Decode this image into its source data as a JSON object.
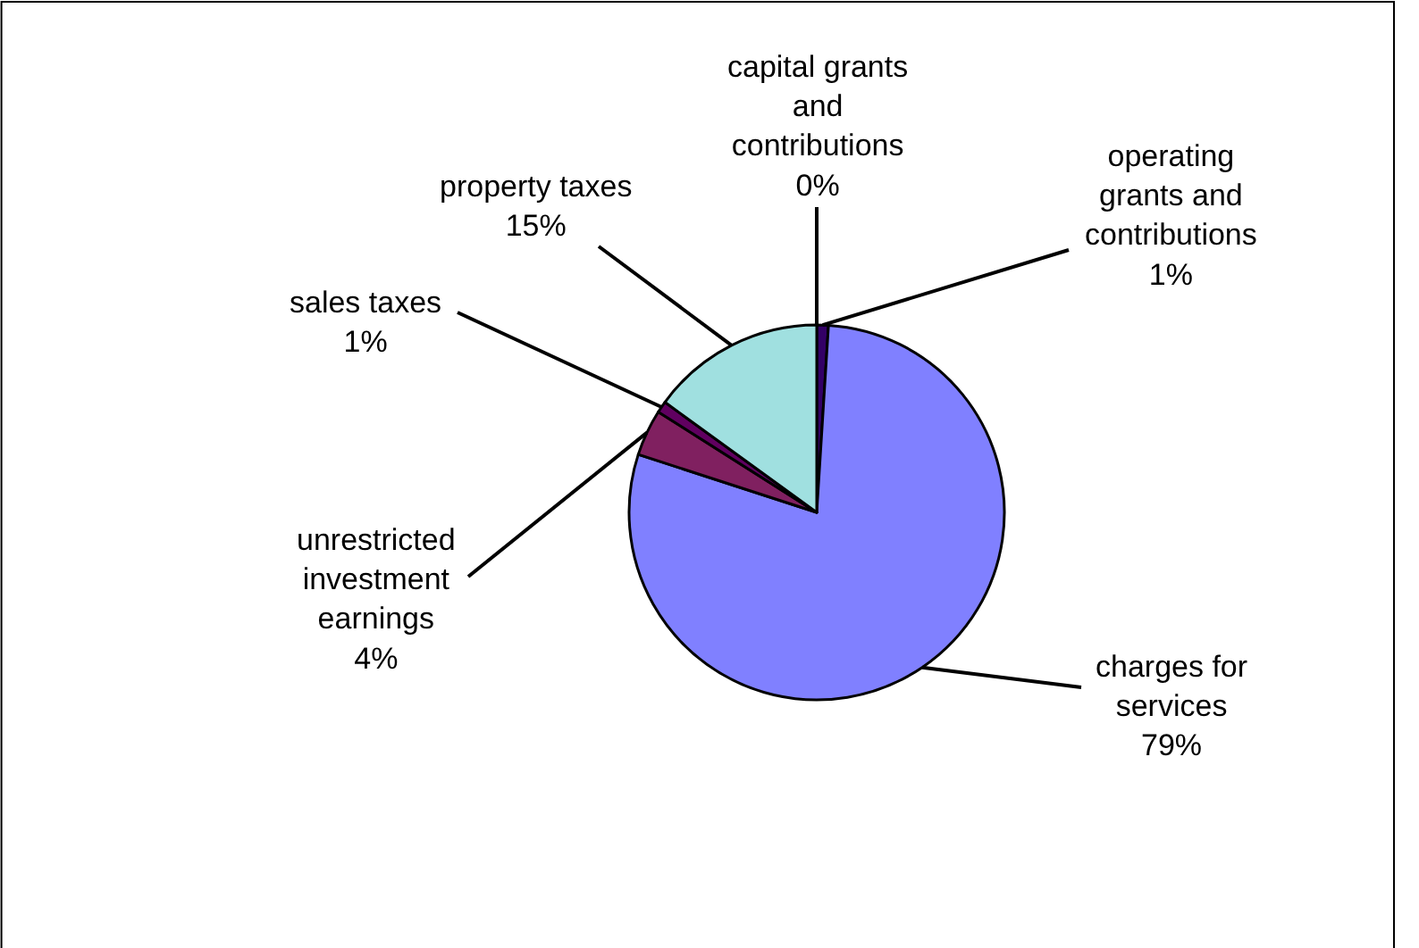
{
  "chart_data": {
    "type": "pie",
    "categories": [
      "capital grants and contributions",
      "operating grants and contributions",
      "charges for services",
      "unrestricted investment earnings",
      "sales taxes",
      "property taxes"
    ],
    "values": [
      0,
      1,
      79,
      4,
      1,
      15
    ],
    "value_labels": [
      "0%",
      "1%",
      "79%",
      "4%",
      "1%",
      "15%"
    ],
    "colors": [
      "#000080",
      "#330066",
      "#8080ff",
      "#802060",
      "#600060",
      "#a0e0e0"
    ],
    "legend": false
  }
}
